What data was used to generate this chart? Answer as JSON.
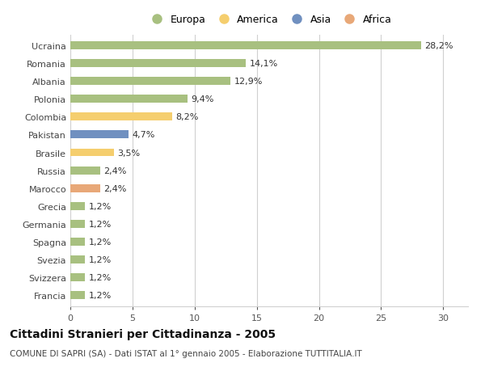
{
  "categories": [
    "Ucraina",
    "Romania",
    "Albania",
    "Polonia",
    "Colombia",
    "Pakistan",
    "Brasile",
    "Russia",
    "Marocco",
    "Grecia",
    "Germania",
    "Spagna",
    "Svezia",
    "Svizzera",
    "Francia"
  ],
  "values": [
    28.2,
    14.1,
    12.9,
    9.4,
    8.2,
    4.7,
    3.5,
    2.4,
    2.4,
    1.2,
    1.2,
    1.2,
    1.2,
    1.2,
    1.2
  ],
  "labels": [
    "28,2%",
    "14,1%",
    "12,9%",
    "9,4%",
    "8,2%",
    "4,7%",
    "3,5%",
    "2,4%",
    "2,4%",
    "1,2%",
    "1,2%",
    "1,2%",
    "1,2%",
    "1,2%",
    "1,2%"
  ],
  "continent": [
    "Europa",
    "Europa",
    "Europa",
    "Europa",
    "America",
    "Asia",
    "America",
    "Europa",
    "Africa",
    "Europa",
    "Europa",
    "Europa",
    "Europa",
    "Europa",
    "Europa"
  ],
  "colors": {
    "Europa": "#a8c080",
    "America": "#f5ce6e",
    "Asia": "#7090c0",
    "Africa": "#e8a878"
  },
  "xlim": [
    0,
    32
  ],
  "xticks": [
    0,
    5,
    10,
    15,
    20,
    25,
    30
  ],
  "title": "Cittadini Stranieri per Cittadinanza - 2005",
  "subtitle": "COMUNE DI SAPRI (SA) - Dati ISTAT al 1° gennaio 2005 - Elaborazione TUTTITALIA.IT",
  "background_color": "#ffffff",
  "bar_bg_color": "#ffffff",
  "grid_color": "#d0d0d0",
  "label_fontsize": 8,
  "tick_fontsize": 8,
  "title_fontsize": 10,
  "subtitle_fontsize": 7.5,
  "bar_height": 0.45,
  "legend_items": [
    "Europa",
    "America",
    "Asia",
    "Africa"
  ]
}
